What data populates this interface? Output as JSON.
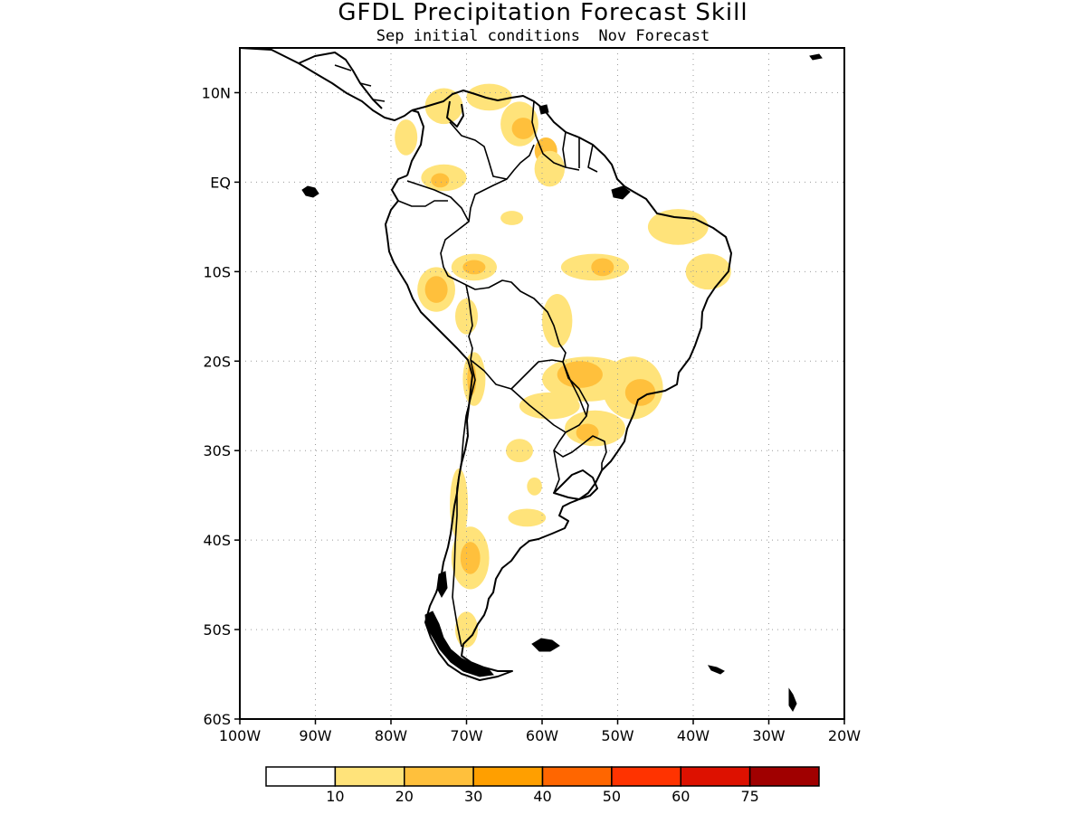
{
  "map": {
    "title": "GFDL Precipitation Forecast Skill",
    "subtitle": "Sep initial conditions  Nov Forecast",
    "lon_range": [
      -100,
      -20
    ],
    "lat_range": [
      -60,
      15
    ],
    "x_ticks": [
      {
        "lon": -100,
        "label": "100W"
      },
      {
        "lon": -90,
        "label": "90W"
      },
      {
        "lon": -80,
        "label": "80W"
      },
      {
        "lon": -70,
        "label": "70W"
      },
      {
        "lon": -60,
        "label": "60W"
      },
      {
        "lon": -50,
        "label": "50W"
      },
      {
        "lon": -40,
        "label": "40W"
      },
      {
        "lon": -30,
        "label": "30W"
      },
      {
        "lon": -20,
        "label": "20W"
      }
    ],
    "y_ticks": [
      {
        "lat": 10,
        "label": "10N"
      },
      {
        "lat": 0,
        "label": "EQ"
      },
      {
        "lat": -10,
        "label": "10S"
      },
      {
        "lat": -20,
        "label": "20S"
      },
      {
        "lat": -30,
        "label": "30S"
      },
      {
        "lat": -40,
        "label": "40S"
      },
      {
        "lat": -50,
        "label": "50S"
      },
      {
        "lat": -60,
        "label": "60S"
      }
    ],
    "colorbar": {
      "colors": [
        "#ffffff",
        "#ffe37a",
        "#ffc03c",
        "#ff9f00",
        "#ff6600",
        "#ff3300",
        "#dd1100",
        "#a00000"
      ],
      "labels": [
        "10",
        "20",
        "30",
        "40",
        "50",
        "60",
        "75"
      ]
    },
    "skill_regions": [
      {
        "level": 1,
        "lon": -73,
        "lat": 8.5,
        "rlon": 2.5,
        "rlat": 2
      },
      {
        "level": 1,
        "lon": -67,
        "lat": 9.5,
        "rlon": 3,
        "rlat": 1.5
      },
      {
        "level": 1,
        "lon": -63,
        "lat": 6.5,
        "rlon": 2.5,
        "rlat": 2.5
      },
      {
        "level": 2,
        "lon": -62.5,
        "lat": 6,
        "rlon": 1.5,
        "rlat": 1.2
      },
      {
        "level": 2,
        "lon": -59.5,
        "lat": 3.5,
        "rlon": 1.5,
        "rlat": 1.5
      },
      {
        "level": 1,
        "lon": -59,
        "lat": 1.5,
        "rlon": 2,
        "rlat": 2
      },
      {
        "level": 1,
        "lon": -73,
        "lat": 0.5,
        "rlon": 3,
        "rlat": 1.5
      },
      {
        "level": 2,
        "lon": -73.5,
        "lat": 0.2,
        "rlon": 1.2,
        "rlat": 0.8
      },
      {
        "level": 1,
        "lon": -78,
        "lat": 5,
        "rlon": 1.5,
        "rlat": 2
      },
      {
        "level": 1,
        "lon": -64,
        "lat": -4,
        "rlon": 1.5,
        "rlat": 0.8
      },
      {
        "level": 1,
        "lon": -69,
        "lat": -9.5,
        "rlon": 3,
        "rlat": 1.5
      },
      {
        "level": 2,
        "lon": -69,
        "lat": -9.5,
        "rlon": 1.5,
        "rlat": 0.8
      },
      {
        "level": 1,
        "lon": -53,
        "lat": -9.5,
        "rlon": 4.5,
        "rlat": 1.5
      },
      {
        "level": 2,
        "lon": -52,
        "lat": -9.5,
        "rlon": 1.5,
        "rlat": 1
      },
      {
        "level": 1,
        "lon": -42,
        "lat": -5,
        "rlon": 4,
        "rlat": 2
      },
      {
        "level": 1,
        "lon": -38,
        "lat": -10,
        "rlon": 3,
        "rlat": 2
      },
      {
        "level": 1,
        "lon": -74,
        "lat": -12,
        "rlon": 2.5,
        "rlat": 2.5
      },
      {
        "level": 2,
        "lon": -74,
        "lat": -12,
        "rlon": 1.5,
        "rlat": 1.5
      },
      {
        "level": 1,
        "lon": -70,
        "lat": -15,
        "rlon": 1.5,
        "rlat": 2
      },
      {
        "level": 1,
        "lon": -58,
        "lat": -15.5,
        "rlon": 2,
        "rlat": 3
      },
      {
        "level": 1,
        "lon": -54,
        "lat": -22,
        "rlon": 6,
        "rlat": 2.5
      },
      {
        "level": 2,
        "lon": -55,
        "lat": -21.5,
        "rlon": 3,
        "rlat": 1.5
      },
      {
        "level": 1,
        "lon": -48,
        "lat": -23,
        "rlon": 4,
        "rlat": 3.5
      },
      {
        "level": 2,
        "lon": -47,
        "lat": -23.5,
        "rlon": 2,
        "rlat": 1.5
      },
      {
        "level": 1,
        "lon": -59,
        "lat": -25,
        "rlon": 4,
        "rlat": 1.5
      },
      {
        "level": 1,
        "lon": -53,
        "lat": -27.5,
        "rlon": 4,
        "rlat": 2
      },
      {
        "level": 2,
        "lon": -54,
        "lat": -28,
        "rlon": 1.5,
        "rlat": 1
      },
      {
        "level": 1,
        "lon": -69,
        "lat": -22,
        "rlon": 1.5,
        "rlat": 3
      },
      {
        "level": 2,
        "lon": -69.3,
        "lat": -22,
        "rlon": 0.6,
        "rlat": 1.8
      },
      {
        "level": 1,
        "lon": -63,
        "lat": -30,
        "rlon": 1.8,
        "rlat": 1.3
      },
      {
        "level": 1,
        "lon": -61,
        "lat": -34,
        "rlon": 1,
        "rlat": 1
      },
      {
        "level": 1,
        "lon": -62,
        "lat": -37.5,
        "rlon": 2.5,
        "rlat": 1
      },
      {
        "level": 1,
        "lon": -71,
        "lat": -36,
        "rlon": 1.2,
        "rlat": 4
      },
      {
        "level": 1,
        "lon": -69.5,
        "lat": -42,
        "rlon": 2.5,
        "rlat": 3.5
      },
      {
        "level": 2,
        "lon": -69.5,
        "lat": -42,
        "rlon": 1.3,
        "rlat": 1.8
      },
      {
        "level": 1,
        "lon": -70,
        "lat": -50,
        "rlon": 1.5,
        "rlat": 2
      }
    ]
  }
}
